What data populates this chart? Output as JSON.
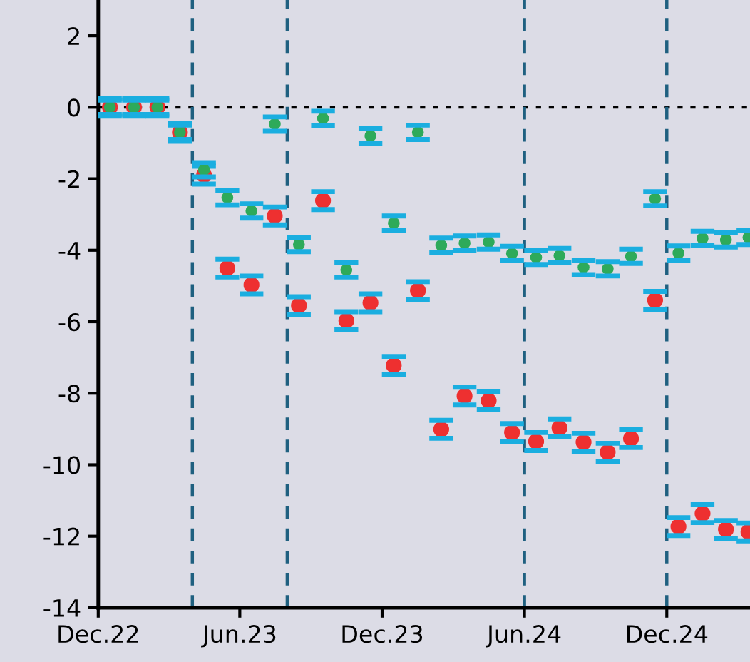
{
  "chart_data": {
    "type": "scatter",
    "x": [
      "2022-12-16",
      "2023-01-16",
      "2023-02-15",
      "2023-03-16",
      "2023-04-16",
      "2023-05-16",
      "2023-06-16",
      "2023-07-16",
      "2023-08-16",
      "2023-09-16",
      "2023-10-16",
      "2023-11-16",
      "2023-12-16",
      "2024-01-16",
      "2024-02-15",
      "2024-03-16",
      "2024-04-16",
      "2024-05-16",
      "2024-06-16",
      "2024-07-16",
      "2024-08-16",
      "2024-09-16",
      "2024-10-16",
      "2024-11-16",
      "2024-12-16",
      "2025-01-16",
      "2025-02-15",
      "2025-03-16"
    ],
    "series": [
      {
        "color": "#ee3030",
        "values": [
          0,
          0,
          0,
          -0.7,
          -1.9,
          -4.5,
          -4.97,
          -3.04,
          -5.55,
          -2.61,
          -5.97,
          -5.47,
          -7.22,
          -5.13,
          -9.01,
          -8.08,
          -8.21,
          -9.1,
          -9.35,
          -8.97,
          -9.37,
          -9.65,
          -9.27,
          -5.4,
          -11.73,
          -11.37,
          -11.81,
          -11.88
        ],
        "errors": [
          0.25,
          0.25,
          0.25,
          0.25,
          0.25,
          0.25,
          0.25,
          0.25,
          0.25,
          0.25,
          0.25,
          0.25,
          0.25,
          0.25,
          0.25,
          0.25,
          0.25,
          0.25,
          0.25,
          0.25,
          0.25,
          0.25,
          0.25,
          0.25,
          0.25,
          0.25,
          0.25,
          0.25
        ]
      },
      {
        "color": "#2eaa5a",
        "values": [
          0,
          0,
          0,
          -0.7,
          -1.75,
          -2.53,
          -2.9,
          -0.47,
          -3.84,
          -0.31,
          -4.55,
          -0.8,
          -3.24,
          -0.7,
          -3.86,
          -3.8,
          -3.77,
          -4.09,
          -4.2,
          -4.15,
          -4.48,
          -4.52,
          -4.17,
          -2.56,
          -4.08,
          -3.67,
          -3.71,
          -3.64
        ],
        "errors": [
          0.2,
          0.2,
          0.2,
          0.2,
          0.2,
          0.2,
          0.2,
          0.2,
          0.2,
          0.2,
          0.2,
          0.2,
          0.2,
          0.2,
          0.2,
          0.2,
          0.2,
          0.2,
          0.2,
          0.2,
          0.2,
          0.2,
          0.2,
          0.2,
          0.2,
          0.2,
          0.2,
          0.2
        ]
      }
    ],
    "marker": "circle",
    "xlim": [
      "2022-12-01",
      "2025-03-18"
    ],
    "xticks": [
      {
        "value": "2022-12-01",
        "label": "Dec.22"
      },
      {
        "value": "2023-06-01",
        "label": "Jun.23"
      },
      {
        "value": "2023-12-01",
        "label": "Dec.23"
      },
      {
        "value": "2024-06-01",
        "label": "Jun.24"
      },
      {
        "value": "2024-12-01",
        "label": "Dec.24"
      }
    ],
    "ylim": [
      -14,
      3
    ],
    "yticks": [
      -14,
      -12,
      -10,
      -8,
      -6,
      -4,
      -2,
      0,
      2
    ],
    "ref_lines": [
      {
        "axis": "y",
        "value": 0,
        "color": "#000000",
        "line_style": "dotted"
      },
      {
        "axis": "x",
        "value": "2023-04-01",
        "color": "#1f6080",
        "line_style": "dashed"
      },
      {
        "axis": "x",
        "value": "2023-08-01",
        "color": "#1f6080",
        "line_style": "dashed"
      },
      {
        "axis": "x",
        "value": "2024-06-01",
        "color": "#1f6080",
        "line_style": "dashed"
      },
      {
        "axis": "x",
        "value": "2024-12-01",
        "color": "#1f6080",
        "line_style": "dashed"
      }
    ],
    "grid": false
  }
}
